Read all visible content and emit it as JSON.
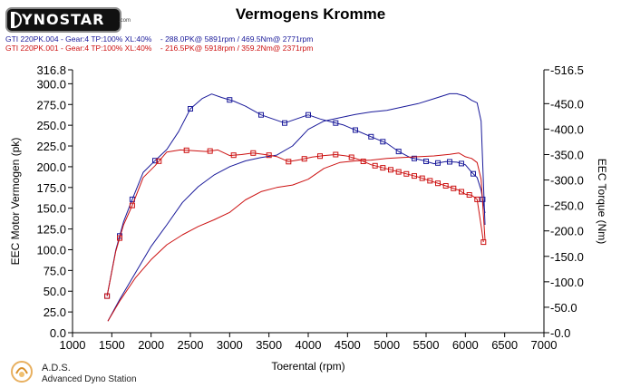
{
  "header": {
    "logo_text": "YNOSTAR",
    "logo_sub": ".com",
    "title": "Vermogens Kromme"
  },
  "runs": [
    {
      "label": "GTI 220PK.004 - Gear:4 TP:100% XL:40%    - 288.0PK@ 5891rpm / 469.5Nm@ 2771rpm",
      "color": "#1a1a9a"
    },
    {
      "label": "GTI 220PK.001 - Gear:4 TP:100% XL:40%    - 216.5PK@ 5918rpm / 359.2Nm@ 2371rpm",
      "color": "#cc1111"
    }
  ],
  "footer": {
    "name": "A.D.S.",
    "subtitle": "Advanced Dyno Station"
  },
  "chart_data": {
    "type": "line",
    "xlabel": "Toerental (rpm)",
    "ylabel": "EEC Motor Vermogen (pk)",
    "y2label": "EEC Torque (Nm)",
    "xlim": [
      1000,
      7000
    ],
    "ylim": [
      0,
      316.8
    ],
    "y2lim": [
      0,
      516.5
    ],
    "x_ticks": [
      "1000",
      "1500",
      "2000",
      "2500",
      "3000",
      "3500",
      "4000",
      "4500",
      "5000",
      "5500",
      "6000",
      "6500",
      "7000"
    ],
    "y_ticks": [
      "0.0",
      "25.0",
      "50.0",
      "75.0",
      "100.0",
      "125.0",
      "150.0",
      "175.0",
      "200.0",
      "225.0",
      "250.0",
      "275.0",
      "300.0",
      "316.8"
    ],
    "y2_ticks": [
      "0.0",
      "50.0",
      "100.0",
      "150.0",
      "200.0",
      "250.0",
      "300.0",
      "350.0",
      "400.0",
      "450.0",
      "516.5"
    ],
    "grid": false,
    "series": [
      {
        "run": "GTI 220PK.004",
        "measure": "torque",
        "axis": "right",
        "color": "#1a1a9a",
        "markers": true,
        "x": [
          1440,
          1550,
          1650,
          1760,
          1900,
          2050,
          2200,
          2350,
          2500,
          2650,
          2771,
          2900,
          3050,
          3200,
          3400,
          3550,
          3700,
          3850,
          4000,
          4150,
          4300,
          4450,
          4600,
          4800,
          5000,
          5150,
          5300,
          5450,
          5600,
          5750,
          5891,
          6000,
          6080,
          6150,
          6200,
          6250
        ],
        "y": [
          72,
          162,
          218,
          262,
          315,
          338,
          360,
          395,
          440,
          460,
          469,
          462,
          455,
          445,
          428,
          420,
          412,
          420,
          428,
          420,
          414,
          408,
          398,
          385,
          372,
          356,
          344,
          339,
          332,
          336,
          335,
          330,
          315,
          305,
          280,
          235
        ],
        "marked_x": [
          1440,
          1600,
          1760,
          2050,
          2500,
          3000,
          3400,
          3700,
          4000,
          4350,
          4600,
          4800,
          4950,
          5150,
          5350,
          5500,
          5650,
          5800,
          5950,
          6100,
          6220
        ]
      },
      {
        "run": "GTI 220PK.004",
        "measure": "power",
        "axis": "left",
        "color": "#1a1a9a",
        "markers": false,
        "x": [
          1450,
          1600,
          1800,
          2000,
          2200,
          2400,
          2600,
          2800,
          3000,
          3200,
          3400,
          3600,
          3800,
          4000,
          4200,
          4400,
          4600,
          4800,
          5000,
          5200,
          5400,
          5600,
          5800,
          5891,
          6000,
          6080,
          6150,
          6200,
          6250
        ],
        "y": [
          14,
          40,
          72,
          104,
          130,
          157,
          176,
          190,
          200,
          207,
          211,
          214,
          225,
          245,
          255,
          259,
          263,
          266,
          268,
          272,
          276,
          282,
          288,
          288,
          285,
          280,
          277,
          255,
          130
        ]
      },
      {
        "run": "GTI 220PK.001",
        "measure": "torque",
        "axis": "right",
        "color": "#cc1111",
        "markers": true,
        "x": [
          1440,
          1550,
          1650,
          1760,
          1900,
          2050,
          2200,
          2371,
          2500,
          2700,
          2850,
          3000,
          3150,
          3300,
          3450,
          3600,
          3750,
          3900,
          4050,
          4200,
          4350,
          4500,
          4650,
          4800,
          5000,
          5200,
          5400,
          5600,
          5800,
          5918,
          6000,
          6080,
          6150,
          6200,
          6230
        ],
        "y": [
          72,
          160,
          212,
          250,
          305,
          328,
          355,
          359,
          358,
          356,
          359,
          348,
          350,
          353,
          350,
          346,
          336,
          340,
          345,
          348,
          350,
          347,
          340,
          330,
          322,
          314,
          306,
          296,
          286,
          280,
          272,
          270,
          262,
          210,
          178
        ],
        "marked_x": [
          1440,
          1600,
          1760,
          2100,
          2450,
          2750,
          3050,
          3300,
          3500,
          3750,
          3950,
          4150,
          4350,
          4550,
          4700,
          4850,
          4950,
          5050,
          5150,
          5250,
          5350,
          5450,
          5550,
          5650,
          5750,
          5850,
          5950,
          6050,
          6150,
          6230
        ]
      },
      {
        "run": "GTI 220PK.001",
        "measure": "power",
        "axis": "left",
        "color": "#cc1111",
        "markers": false,
        "x": [
          1450,
          1600,
          1800,
          2000,
          2200,
          2400,
          2600,
          2800,
          3000,
          3200,
          3400,
          3600,
          3800,
          4000,
          4200,
          4400,
          4600,
          4800,
          5000,
          5200,
          5400,
          5600,
          5800,
          5918,
          6000,
          6080,
          6150,
          6200,
          6250
        ],
        "y": [
          14,
          38,
          66,
          88,
          106,
          118,
          128,
          136,
          145,
          160,
          170,
          175,
          178,
          185,
          198,
          205,
          207,
          208,
          210,
          211,
          212,
          213,
          215,
          216.5,
          212,
          210,
          205,
          185,
          112
        ]
      }
    ]
  }
}
